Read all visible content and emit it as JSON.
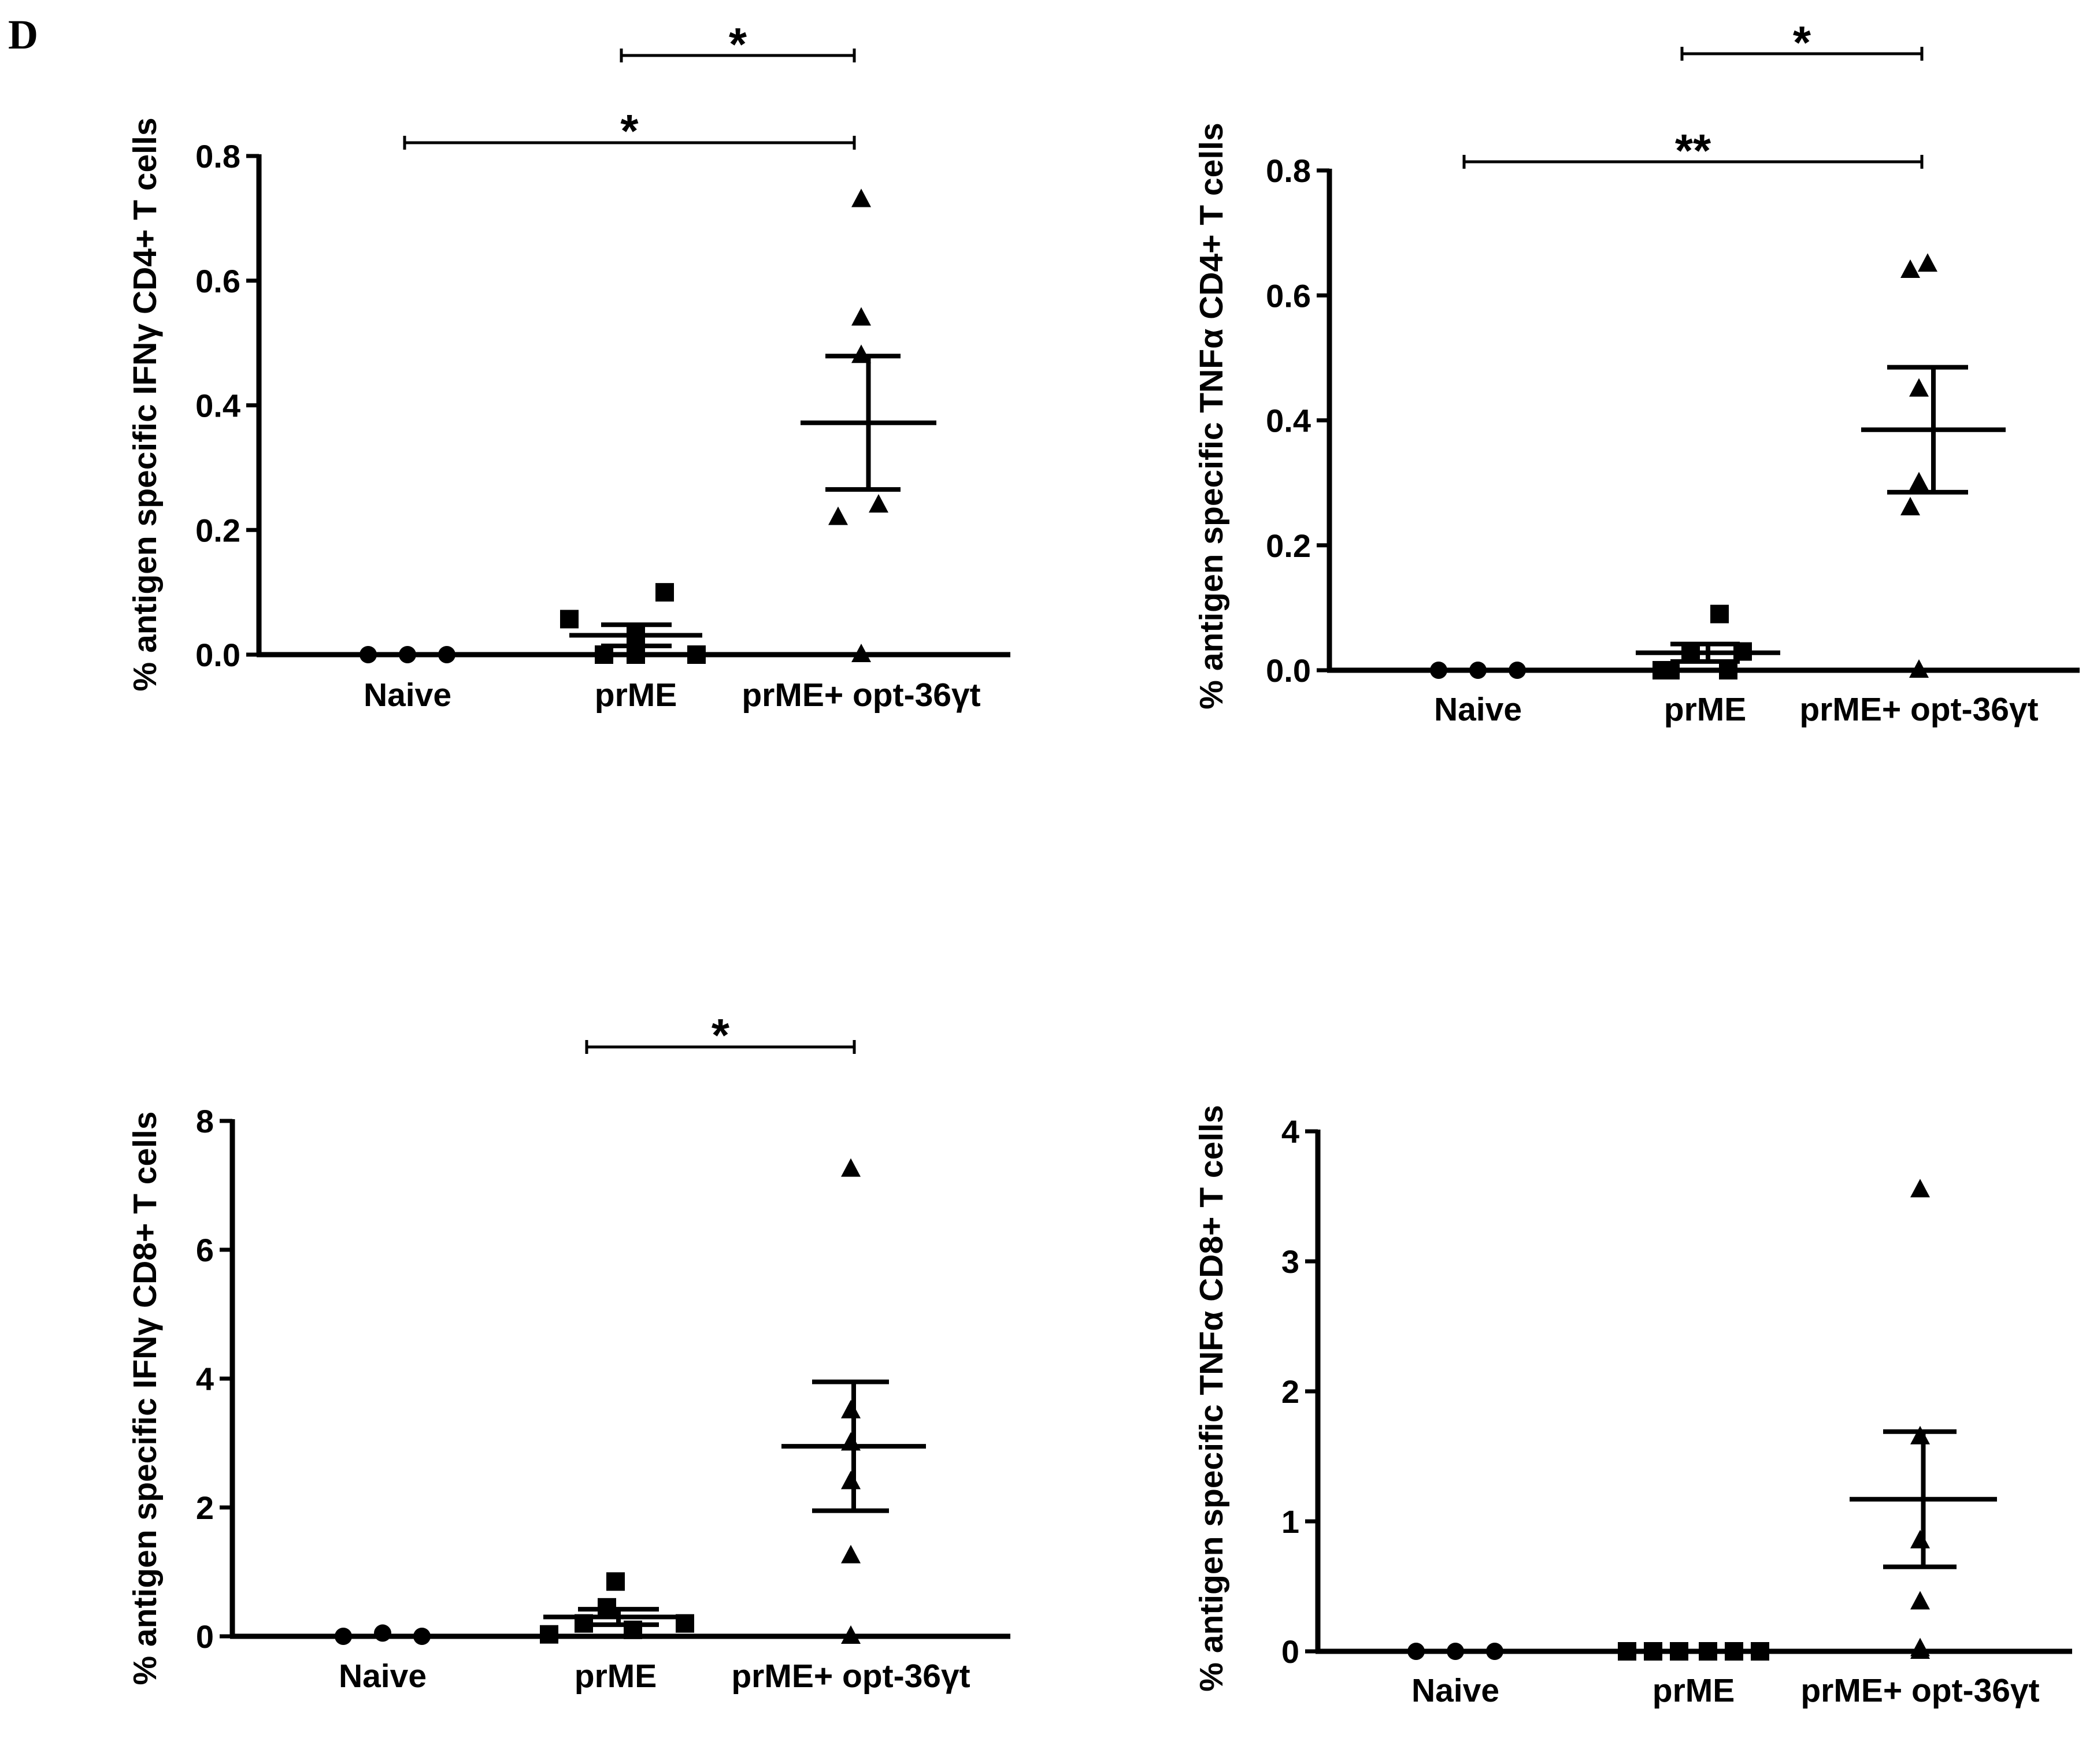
{
  "panel_label": "D",
  "chart_data": [
    {
      "type": "scatter",
      "subtype": "dot-plot with mean and SEM bars",
      "ylabel": "% antigen specific IFNγ CD4+ T cells",
      "xlabel": "",
      "categories": [
        "Naive",
        "prME",
        "prME+ opt-36γt"
      ],
      "ylim": [
        0,
        0.8
      ],
      "yticks": [
        "0.0",
        "0.2",
        "0.4",
        "0.6",
        "0.8"
      ],
      "series": [
        {
          "name": "Naive",
          "marker": "circle",
          "values": [
            0,
            0,
            0
          ],
          "mean": 0,
          "sem": 0
        },
        {
          "name": "prME",
          "marker": "square",
          "values": [
            0.057,
            0,
            0.03,
            0.1,
            0,
            0
          ],
          "mean": 0.031,
          "sem": 0.017
        },
        {
          "name": "prME+ opt-36γt",
          "marker": "triangle",
          "values": [
            0.73,
            0.54,
            0.48,
            0.22,
            0.24,
            0
          ],
          "mean": 0.372,
          "sem": 0.107
        }
      ],
      "significance": [
        {
          "from": "prME",
          "to": "prME+ opt-36γt",
          "label": "*"
        },
        {
          "from": "Naive",
          "to": "prME+ opt-36γt",
          "label": "*"
        }
      ]
    },
    {
      "type": "scatter",
      "subtype": "dot-plot with mean and SEM bars",
      "ylabel": "% antigen specific TNFα  CD4+ T cells",
      "xlabel": "",
      "categories": [
        "Naive",
        "prME",
        "prME+ opt-36γt"
      ],
      "ylim": [
        0,
        0.8
      ],
      "yticks": [
        "0.0",
        "0.2",
        "0.4",
        "0.6",
        "0.8"
      ],
      "series": [
        {
          "name": "Naive",
          "marker": "circle",
          "values": [
            0,
            0,
            0
          ],
          "mean": 0,
          "sem": 0
        },
        {
          "name": "prME",
          "marker": "square",
          "values": [
            0,
            0.03,
            0.09,
            0.03,
            0,
            0
          ],
          "mean": 0.028,
          "sem": 0.014
        },
        {
          "name": "prME+ opt-36γt",
          "marker": "triangle",
          "values": [
            0.64,
            0.65,
            0.45,
            0.3,
            0.26,
            0
          ],
          "mean": 0.385,
          "sem": 0.1
        }
      ],
      "significance": [
        {
          "from": "prME",
          "to": "prME+ opt-36γt",
          "label": "*"
        },
        {
          "from": "Naive",
          "to": "prME+ opt-36γt",
          "label": "**"
        }
      ]
    },
    {
      "type": "scatter",
      "subtype": "dot-plot with mean and SEM bars",
      "ylabel": "% antigen specific IFNγ CD8+ T cells",
      "xlabel": "",
      "categories": [
        "Naive",
        "prME",
        "prME+ opt-36γt"
      ],
      "ylim": [
        0,
        8
      ],
      "yticks": [
        "0",
        "2",
        "4",
        "6",
        "8"
      ],
      "series": [
        {
          "name": "Naive",
          "marker": "circle",
          "values": [
            0,
            0.05,
            0
          ],
          "mean": 0.02,
          "sem": 0.02
        },
        {
          "name": "prME",
          "marker": "square",
          "values": [
            0.03,
            0.45,
            0.2,
            0.85,
            0.2,
            0.1
          ],
          "mean": 0.3,
          "sem": 0.12
        },
        {
          "name": "prME+ opt-36γt",
          "marker": "triangle",
          "values": [
            7.25,
            3.5,
            3.0,
            2.4,
            1.25,
            0
          ],
          "mean": 2.95,
          "sem": 1.0
        }
      ],
      "significance": [
        {
          "from": "prME",
          "to": "prME+ opt-36γt",
          "label": "*"
        }
      ]
    },
    {
      "type": "scatter",
      "subtype": "dot-plot with mean and SEM bars",
      "ylabel": "% antigen specific TNFα  CD8+ T cells",
      "xlabel": "",
      "categories": [
        "Naive",
        "prME",
        "prME+ opt-36γt"
      ],
      "ylim": [
        0,
        4
      ],
      "yticks": [
        "0",
        "1",
        "2",
        "3",
        "4"
      ],
      "series": [
        {
          "name": "Naive",
          "marker": "circle",
          "values": [
            0,
            0,
            0
          ],
          "mean": 0,
          "sem": 0
        },
        {
          "name": "prME",
          "marker": "square",
          "values": [
            0,
            0,
            0,
            0,
            0,
            0
          ],
          "mean": 0,
          "sem": 0
        },
        {
          "name": "prME+ opt-36γt",
          "marker": "triangle",
          "values": [
            3.55,
            1.65,
            0.85,
            0.38,
            0.02,
            0
          ],
          "mean": 1.17,
          "sem": 0.52
        }
      ],
      "significance": []
    }
  ]
}
